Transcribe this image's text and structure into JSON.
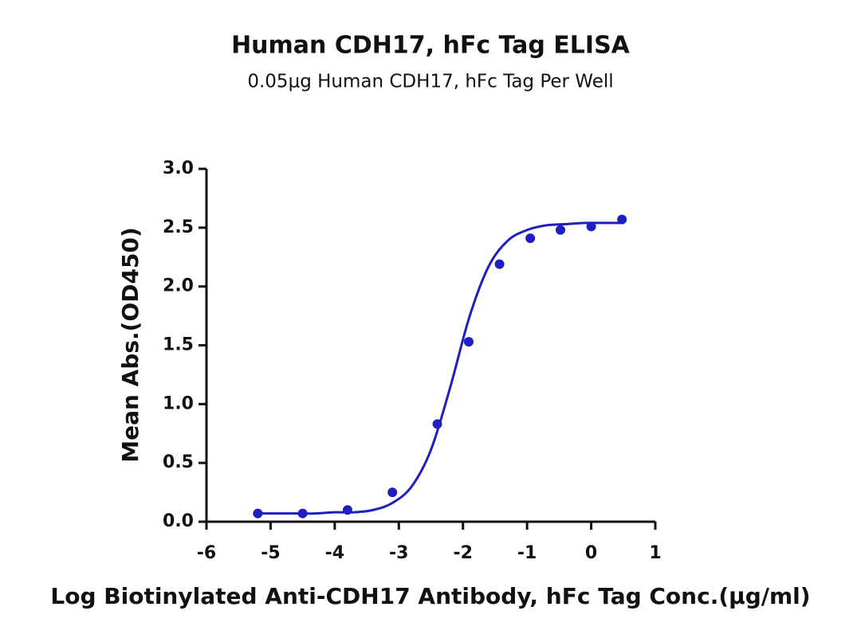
{
  "chart_data": {
    "type": "scatter",
    "title": "Human CDH17, hFc Tag ELISA",
    "subtitle": "0.05μg Human CDH17, hFc Tag Per Well",
    "x_label": "Log Biotinylated Anti-CDH17 Antibody, hFc Tag Conc.(μg/ml)",
    "y_label": "Mean Abs.(OD450)",
    "x": [
      -5.2,
      -4.5,
      -3.8,
      -3.1,
      -2.4,
      -1.91,
      -1.43,
      -0.95,
      -0.48,
      0,
      0.48
    ],
    "values": [
      0.07,
      0.07,
      0.1,
      0.25,
      0.83,
      1.53,
      2.19,
      2.41,
      2.48,
      2.51,
      2.57
    ],
    "curve": {
      "x": [
        -5.2,
        -4.9,
        -4.6,
        -4.3,
        -4.0,
        -3.7,
        -3.4,
        -3.1,
        -2.8,
        -2.5,
        -2.2,
        -1.9,
        -1.6,
        -1.3,
        -1.0,
        -0.7,
        -0.4,
        -0.1,
        0.2,
        0.5
      ],
      "values": [
        0.07,
        0.07,
        0.07,
        0.07,
        0.08,
        0.08,
        0.1,
        0.16,
        0.3,
        0.61,
        1.14,
        1.74,
        2.17,
        2.39,
        2.48,
        2.52,
        2.53,
        2.54,
        2.54,
        2.54
      ]
    },
    "color": "#1f1fbf",
    "xlim": [
      -6,
      1
    ],
    "xticks": [
      -6,
      -5,
      -4,
      -3,
      -2,
      -1,
      0,
      1
    ],
    "ylim": [
      0,
      3
    ],
    "yticks": [
      {
        "value": 0,
        "label": "0.0"
      },
      0.5,
      {
        "value": 1,
        "label": "1.0"
      },
      1.5,
      {
        "value": 2,
        "label": "2.0"
      },
      2.5,
      {
        "value": 3,
        "label": "3.0"
      }
    ],
    "grid": false
  }
}
